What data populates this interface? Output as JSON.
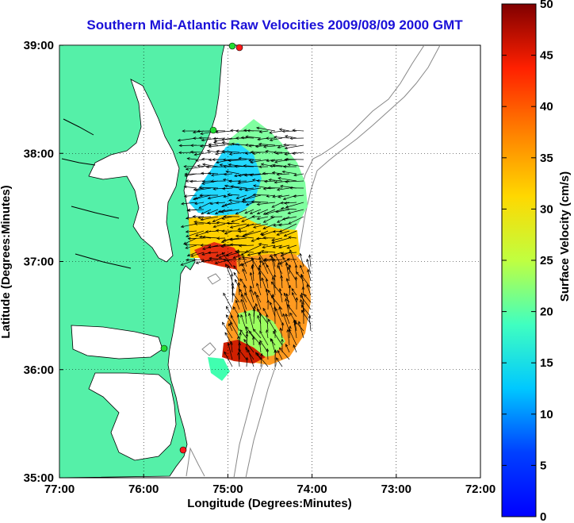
{
  "chart_data": {
    "type": "map",
    "title": "Southern Mid-Atlantic Raw Velocities 2009/08/09 2000 GMT",
    "xlabel": "Longitude (Degrees:Minutes)",
    "ylabel": "Latitude (Degrees:Minutes)",
    "x_ticks": [
      "77:00",
      "76:00",
      "75:00",
      "74:00",
      "73:00",
      "72:00"
    ],
    "y_ticks": [
      "39:00",
      "38:00",
      "37:00",
      "36:00",
      "35:00"
    ],
    "xlim_deg_west": [
      77,
      72
    ],
    "ylim_deg_north": [
      35,
      39
    ],
    "grid": true,
    "colorbar": {
      "label": "Surface Velocity (cm/s)",
      "ticks": [
        "0",
        "5",
        "10",
        "15",
        "20",
        "25",
        "30",
        "35",
        "40",
        "45",
        "50"
      ],
      "min": 0,
      "max": 50,
      "colormap": "jet"
    },
    "colors": {
      "land": "#55f0a8",
      "coast_outline": "#000000",
      "bathymetry": "#888888",
      "title": "#1a10d8",
      "station_active": "#22dd33",
      "station_inactive": "#ff1a1a"
    }
  }
}
